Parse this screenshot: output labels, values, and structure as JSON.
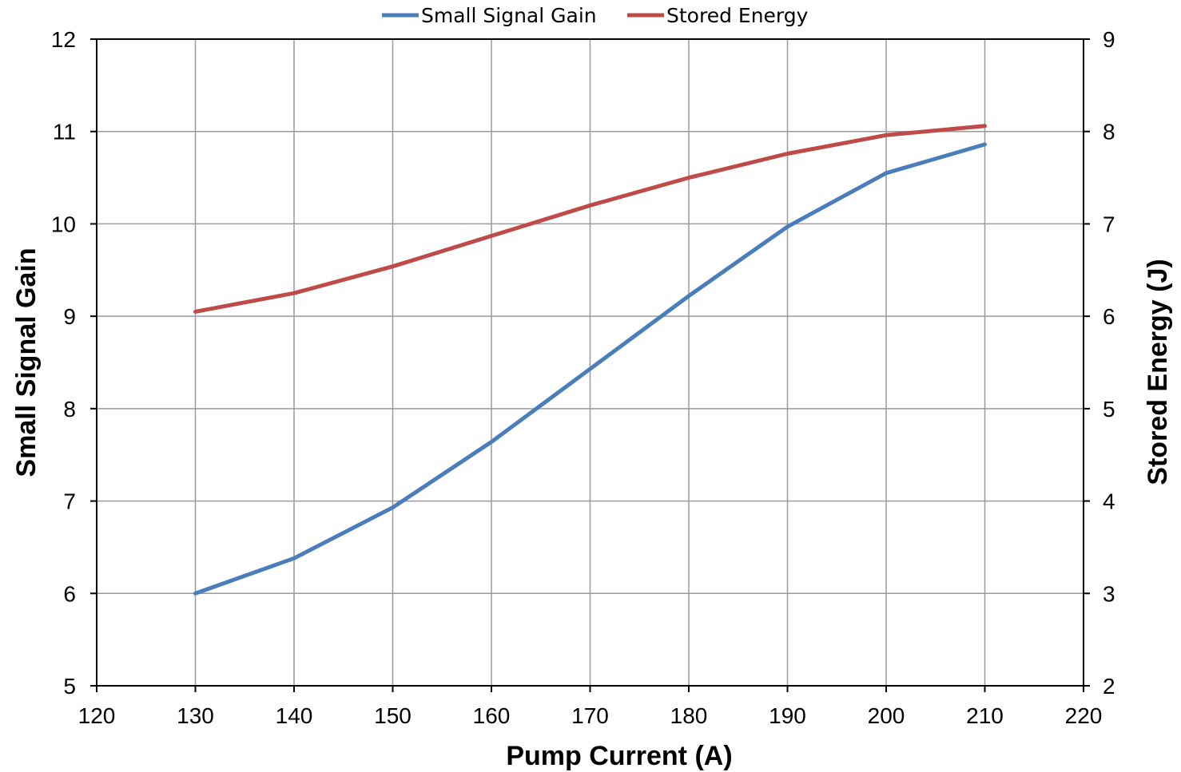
{
  "chart_data": {
    "type": "line",
    "xlabel": "Pump Current (A)",
    "ylabel": "Small Signal Gain",
    "y2label": "Stored Energy (J)",
    "xlim": [
      120,
      220
    ],
    "ylim": [
      5,
      12
    ],
    "y2lim": [
      2,
      9
    ],
    "xticks": [
      "120",
      "130",
      "140",
      "150",
      "160",
      "170",
      "180",
      "190",
      "200",
      "210",
      "220"
    ],
    "yticks": [
      "5",
      "6",
      "7",
      "8",
      "9",
      "10",
      "11",
      "12"
    ],
    "y2ticks": [
      "2",
      "3",
      "4",
      "5",
      "6",
      "7",
      "8",
      "9"
    ],
    "grid": true,
    "legend_position": "top-center",
    "x": [
      130,
      140,
      150,
      160,
      170,
      180,
      190,
      200,
      210
    ],
    "series": [
      {
        "name": "Small Signal Gain",
        "axis": "left",
        "color": "#4a7ebb",
        "values": [
          6.0,
          6.38,
          6.93,
          7.64,
          8.43,
          9.22,
          9.97,
          10.55,
          10.86
        ]
      },
      {
        "name": "Stored Energy",
        "axis": "right",
        "color": "#be4b48",
        "values": [
          6.05,
          6.25,
          6.54,
          6.87,
          7.2,
          7.5,
          7.76,
          7.96,
          8.06
        ]
      }
    ]
  }
}
